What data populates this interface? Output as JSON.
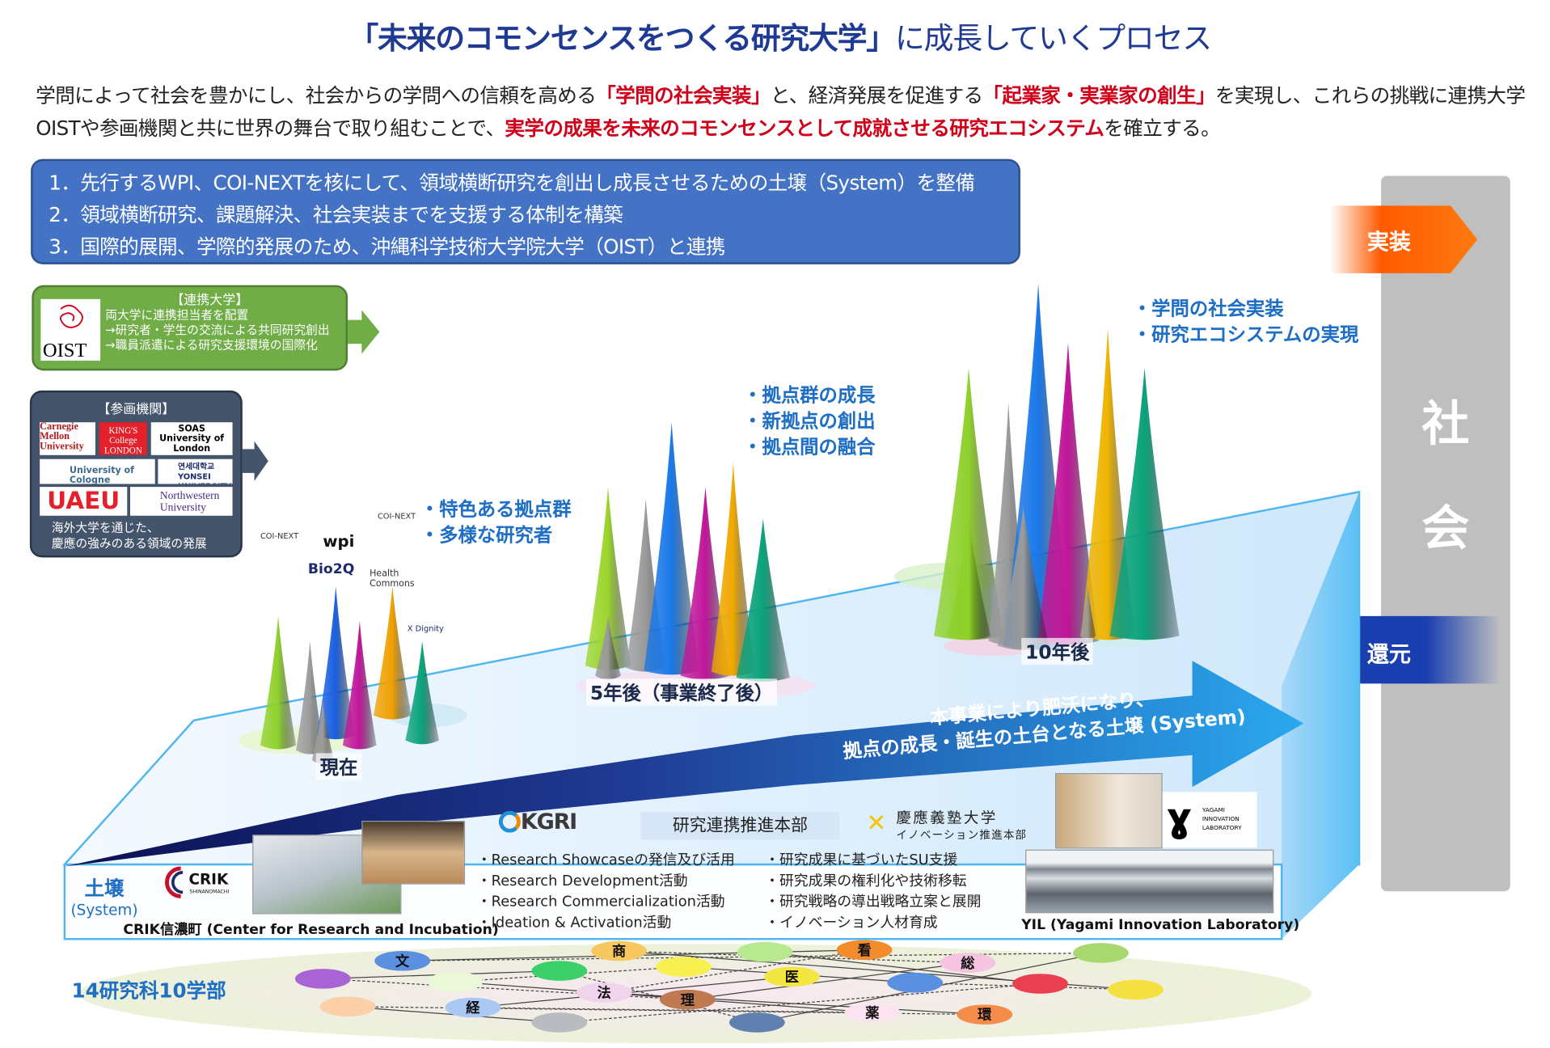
{
  "title": {
    "bold": "「未来のコモンセンスをつくる研究大学」",
    "rest": "に成長していくプロセス"
  },
  "intro": {
    "p1": "学問によって社会を豊かにし、社会からの学問への信頼を高める",
    "h1": "「学問の社会実装」",
    "p2": "と、経済発展を促進する",
    "h2": "「起業家・実業家の創生」",
    "p3": "を実現し、これらの挑戦に連携大学OISTや参画機関と共に世界の舞台で取り組むことで、",
    "h3": "実学の成果を未来のコモンセンスとして成就させる研究エコシステム",
    "p4": "を確立する。"
  },
  "goals": [
    "1．先行するWPI、COI-NEXTを核にして、領域横断研究を創出し成長させるための土壌（System）を整備",
    "2．領域横断研究、課題解決、社会実装までを支援する体制を構築",
    "3．国際的展開、学際的発展のため、沖縄科学技術大学院大学（OIST）と連携"
  ],
  "oist": {
    "heading": "【連携大学】",
    "logo": "OIST",
    "lines": [
      "両大学に連携担当者を配置",
      "→研究者・学生の交流による共同研究創出",
      "→職員派遣による研究支援環境の国際化"
    ]
  },
  "partners": {
    "heading": "【参画機関】",
    "logos": [
      "Carnegie Mellon University",
      "KING'S College LONDON",
      "SOAS University of London",
      "University of Cologne",
      "연세대학교 YONSEI UNIVERSITY",
      "UAEU",
      "Northwestern University"
    ],
    "lines": [
      "海外大学を通じた、",
      "慶應の強みのある領域の発展"
    ]
  },
  "society": {
    "chars": [
      "社",
      "会"
    ],
    "implement": "実装",
    "return": "還元"
  },
  "stages": {
    "now": {
      "label": "現在",
      "bullets": [
        "・特色ある拠点群",
        "・多様な研究者"
      ],
      "logos": [
        "COI-NEXT",
        "wpi",
        "Bio2Q",
        "COI-NEXT",
        "Health Commons",
        "X Dignity"
      ]
    },
    "five": {
      "label": "5年後（事業終了後）",
      "bullets": [
        "・拠点群の成長",
        "・新拠点の創出",
        "・拠点間の融合"
      ]
    },
    "ten": {
      "label": "10年後",
      "bullets": [
        "・学問の社会実装",
        "・研究エコシステムの実現"
      ]
    }
  },
  "arrow_text": [
    "本事業により肥沃になり、",
    "拠点の成長・誕生の土台となる土壌 (System)"
  ],
  "soil": {
    "label": "土壌",
    "sub": "(System)"
  },
  "crik": {
    "logo": "CRIK",
    "logo_sub": "SHINANOMACHI",
    "caption": "CRIK信濃町 (Center for Research and Incubation)"
  },
  "kgri": {
    "logo": "KGRI",
    "dept": "研究連携推進本部",
    "items": [
      "・Research Showcaseの発信及び活用",
      "・Research Development活動",
      "・Research Commercialization活動",
      "・Ideation & Activation活動"
    ]
  },
  "innovation": {
    "logo_main": "慶應義塾大学",
    "logo_sub": "イノベーション推進本部",
    "items": [
      "・研究成果に基づいたSU支援",
      "・研究成果の権利化や技術移転",
      "・研究戦略の導出戦略立案と展開",
      "・イノベーション人材育成"
    ]
  },
  "yil": {
    "logo": "YAGAMI INNOVATION LABORATORY",
    "caption": "YIL (Yagami Innovation Laboratory)"
  },
  "faculties": {
    "label": "14研究科10学部",
    "nodes": [
      "文",
      "商",
      "医",
      "看",
      "総",
      "経",
      "法",
      "理",
      "薬",
      "環"
    ]
  },
  "colors": {
    "navy": "#1f3a93",
    "red": "#d0021b",
    "goal_box": "#4472c4",
    "oist_green": "#70ad47",
    "partner_slate": "#44546a",
    "implement_orange": "#ff5a00",
    "return_blue": "#1a3fb0",
    "society_gray": "#bfbfbf",
    "label_blue": "#1f6fc4"
  }
}
